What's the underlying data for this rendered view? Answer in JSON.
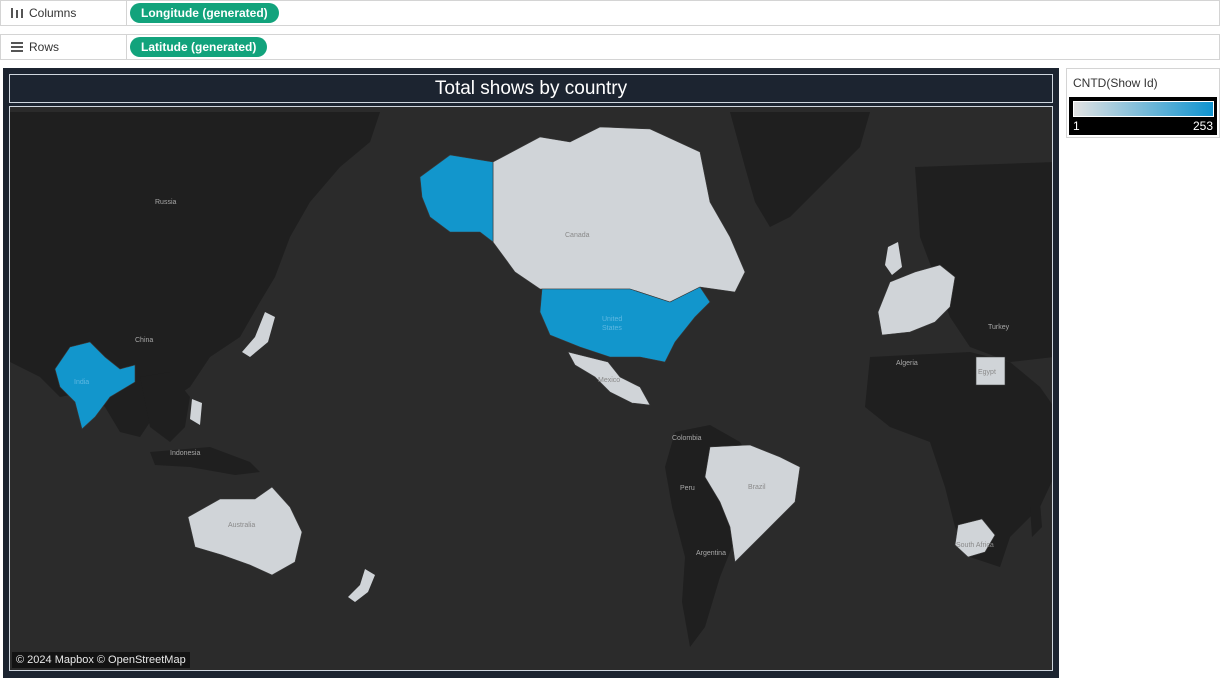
{
  "shelves": {
    "columns": {
      "label": "Columns",
      "pill": "Longitude (generated)"
    },
    "rows": {
      "label": "Rows",
      "pill": "Latitude (generated)"
    }
  },
  "viz": {
    "title": "Total shows by country",
    "attribution": "© 2024 Mapbox © OpenStreetMap"
  },
  "legend": {
    "title": "CNTD(Show Id)",
    "min": "1",
    "max": "253",
    "color_low": "#e2e2e2",
    "color_high": "#0f93cf"
  },
  "map_labels": {
    "russia": "Russia",
    "china": "China",
    "india": "India",
    "indonesia": "Indonesia",
    "australia": "Australia",
    "canada": "Canada",
    "united_states_1": "United",
    "united_states_2": "States",
    "mexico": "Mexico",
    "colombia": "Colombia",
    "peru": "Peru",
    "brazil": "Brazil",
    "argentina": "Argentina",
    "algeria": "Algeria",
    "egypt": "Egypt",
    "turkey": "Turkey",
    "south_africa": "South Africa"
  },
  "colors": {
    "map_background": "#2b2b2b",
    "land_dark": "#1f1f1f",
    "country_light": "#d0d4d8",
    "country_blue": "#1296cc",
    "accent_pill": "#12a37c"
  }
}
